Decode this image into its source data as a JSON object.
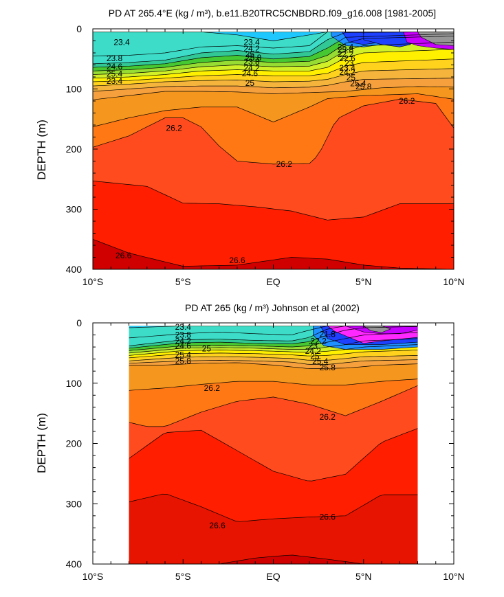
{
  "chart_data": [
    {
      "type": "heatmap",
      "title": "PD AT 265.4°E (kg / m³), b.e11.B20TRC5CNBDRD.f09_g16.008 [1981-2005]",
      "xlabel": "",
      "ylabel": "DEPTH (m)",
      "xlim": [
        -10,
        10
      ],
      "ylim": [
        400,
        0
      ],
      "xticks": [
        {
          "v": -10,
          "label": "10°S"
        },
        {
          "v": -5,
          "label": "5°S"
        },
        {
          "v": 0,
          "label": "EQ"
        },
        {
          "v": 5,
          "label": "5°N"
        },
        {
          "v": 10,
          "label": "10°N"
        }
      ],
      "yticks": [
        0,
        100,
        200,
        300,
        400
      ],
      "data_extent_x": [
        -10,
        10
      ],
      "data_extent_depth": [
        5,
        400
      ],
      "levels": [
        {
          "value": 22.2,
          "color": "#1e40ff"
        },
        {
          "value": 22.6,
          "color": "#1e90ff"
        },
        {
          "value": 23.0,
          "color": "#1ec8ff"
        },
        {
          "value": 23.4,
          "color": "#46e6ff"
        },
        {
          "value": 23.8,
          "color": "#3cdcc8"
        },
        {
          "value": 24.2,
          "color": "#32c896"
        },
        {
          "value": 24.4,
          "color": "#46c832"
        },
        {
          "value": 24.6,
          "color": "#96dc32"
        },
        {
          "value": 24.8,
          "color": "#d2f028"
        },
        {
          "value": 25.0,
          "color": "#fff000"
        },
        {
          "value": 25.2,
          "color": "#ffd21e"
        },
        {
          "value": 25.4,
          "color": "#f5b43c"
        },
        {
          "value": 25.6,
          "color": "#f5a03c"
        },
        {
          "value": 25.8,
          "color": "#f5961e"
        },
        {
          "value": 26.0,
          "color": "#ff7814"
        },
        {
          "value": 26.2,
          "color": "#ff4b1e"
        },
        {
          "value": 26.4,
          "color": "#ff1e00"
        },
        {
          "value": 26.6,
          "color": "#e61400"
        },
        {
          "value": 26.8,
          "color": "#d00000"
        }
      ],
      "contour_labels": [
        "23.4",
        "23.4",
        "23.8",
        "24.2",
        "24.6",
        "25",
        "25.4",
        "25.8",
        "23.4",
        "23.8",
        "24.2",
        "24.6",
        "25",
        "25.4",
        "25.8",
        "22.2",
        "22.6",
        "23",
        "23.4",
        "24.2",
        "25",
        "25.4",
        "25.8",
        "26.2",
        "26.2",
        "26.2",
        "26.6",
        "26.6"
      ],
      "isolines": [
        {
          "value": 25.8,
          "points": [
            [
              -10,
              118
            ],
            [
              -8,
              111
            ],
            [
              -6,
              104
            ],
            [
              -4,
              104
            ],
            [
              -2,
              105
            ],
            [
              0,
              108
            ],
            [
              2,
              106
            ],
            [
              4,
              104
            ],
            [
              6,
              98
            ],
            [
              8,
              96
            ],
            [
              10,
              97
            ]
          ]
        },
        {
          "value": 26.0,
          "points": [
            [
              -10,
              163
            ],
            [
              -8,
              148
            ],
            [
              -6,
              136
            ],
            [
              -4,
              130
            ],
            [
              -2,
              130
            ],
            [
              0,
              155
            ],
            [
              2,
              130
            ],
            [
              3,
              116
            ],
            [
              5,
              111
            ],
            [
              8,
              108
            ],
            [
              10,
              117
            ]
          ]
        },
        {
          "value": 26.2,
          "points": [
            [
              -10,
              197
            ],
            [
              -8,
              178
            ],
            [
              -6,
              148
            ],
            [
              -5,
              148
            ],
            [
              -4,
              163
            ],
            [
              -3,
              195
            ],
            [
              -2,
              220
            ],
            [
              0,
              225
            ],
            [
              2,
              224
            ],
            [
              2.5,
              210
            ],
            [
              3.5,
              150
            ],
            [
              5,
              128
            ],
            [
              7,
              117
            ],
            [
              9,
              124
            ],
            [
              10,
              165
            ]
          ]
        },
        {
          "value": 26.4,
          "points": [
            [
              -10,
              253
            ],
            [
              -7,
              262
            ],
            [
              -5,
              290
            ],
            [
              -3,
              291
            ],
            [
              -1,
              296
            ],
            [
              1,
              303
            ],
            [
              3,
              318
            ],
            [
              5,
              313
            ],
            [
              7,
              291
            ],
            [
              10,
              291
            ]
          ]
        },
        {
          "value": 26.6,
          "points": [
            [
              -10,
              350
            ],
            [
              -8,
              373
            ],
            [
              -5,
              395
            ],
            [
              -2,
              393
            ],
            [
              1,
              380
            ],
            [
              3,
              383
            ],
            [
              5,
              393
            ],
            [
              7,
              398
            ],
            [
              10,
              400
            ]
          ]
        }
      ]
    },
    {
      "type": "heatmap",
      "title": "PD AT 265 (kg / m³) Johnson et al (2002)",
      "xlabel": "",
      "ylabel": "DEPTH (m)",
      "xlim": [
        -10,
        10
      ],
      "ylim": [
        400,
        0
      ],
      "xticks": [
        {
          "v": -10,
          "label": "10°S"
        },
        {
          "v": -5,
          "label": "5°S"
        },
        {
          "v": 0,
          "label": "EQ"
        },
        {
          "v": 5,
          "label": "5°N"
        },
        {
          "v": 10,
          "label": "10°N"
        }
      ],
      "yticks": [
        0,
        100,
        200,
        300,
        400
      ],
      "data_extent_x": [
        -8,
        8
      ],
      "data_extent_depth": [
        5,
        400
      ],
      "levels": [
        {
          "value": 21.8,
          "color": "#ff28ff"
        },
        {
          "value": 22.2,
          "color": "#1e40ff"
        },
        {
          "value": 22.6,
          "color": "#1e90ff"
        },
        {
          "value": 23.0,
          "color": "#1ec8ff"
        },
        {
          "value": 23.4,
          "color": "#46e6ff"
        },
        {
          "value": 23.8,
          "color": "#3cdcc8"
        },
        {
          "value": 24.2,
          "color": "#32c896"
        },
        {
          "value": 24.4,
          "color": "#46c832"
        },
        {
          "value": 24.6,
          "color": "#96dc32"
        },
        {
          "value": 24.8,
          "color": "#d2f028"
        },
        {
          "value": 25.0,
          "color": "#fff000"
        },
        {
          "value": 25.2,
          "color": "#ffd21e"
        },
        {
          "value": 25.4,
          "color": "#f5b43c"
        },
        {
          "value": 25.6,
          "color": "#f5a03c"
        },
        {
          "value": 25.8,
          "color": "#f5961e"
        },
        {
          "value": 26.0,
          "color": "#ff7814"
        },
        {
          "value": 26.2,
          "color": "#ff4b1e"
        },
        {
          "value": 26.4,
          "color": "#ff1e00"
        },
        {
          "value": 26.6,
          "color": "#e61400"
        },
        {
          "value": 26.8,
          "color": "#d00000"
        }
      ],
      "contour_labels": [
        "23.4",
        "23.8",
        "24.2",
        "24.6",
        "25",
        "25.4",
        "25.8",
        "21.8",
        "22.2",
        "23",
        "24.2",
        "25",
        "25.4",
        "25.8",
        "26.2",
        "26.2",
        "26.6",
        "26.6"
      ],
      "isolines": [
        {
          "value": 25.8,
          "points": [
            [
              -8,
              70
            ],
            [
              -6,
              70
            ],
            [
              -4,
              67
            ],
            [
              -2,
              66
            ],
            [
              0,
              70
            ],
            [
              2,
              76
            ],
            [
              4,
              75
            ],
            [
              6,
              70
            ],
            [
              8,
              68
            ]
          ]
        },
        {
          "value": 26.0,
          "points": [
            [
              -8,
              112
            ],
            [
              -6,
              108
            ],
            [
              -4,
              102
            ],
            [
              -2,
              97
            ],
            [
              0,
              97
            ],
            [
              2,
              103
            ],
            [
              4,
              103
            ],
            [
              6,
              97
            ],
            [
              8,
              93
            ]
          ]
        },
        {
          "value": 26.2,
          "points": [
            [
              -8,
              165
            ],
            [
              -7,
              172
            ],
            [
              -6,
              172
            ],
            [
              -4,
              148
            ],
            [
              -2,
              130
            ],
            [
              0,
              123
            ],
            [
              2,
              135
            ],
            [
              4,
              154
            ],
            [
              6,
              130
            ],
            [
              8,
              104
            ]
          ]
        },
        {
          "value": 26.4,
          "points": [
            [
              -8,
              225
            ],
            [
              -6,
              182
            ],
            [
              -4,
              178
            ],
            [
              -2,
              212
            ],
            [
              0,
              246
            ],
            [
              2,
              263
            ],
            [
              4,
              251
            ],
            [
              6,
              198
            ],
            [
              8,
              175
            ]
          ]
        },
        {
          "value": 26.6,
          "points": [
            [
              -8,
              297
            ],
            [
              -6,
              283
            ],
            [
              -4,
              305
            ],
            [
              -2,
              330
            ],
            [
              0,
              325
            ],
            [
              2,
              322
            ],
            [
              4,
              320
            ],
            [
              6,
              285
            ],
            [
              8,
              285
            ]
          ]
        },
        {
          "value": 26.8,
          "points": [
            [
              -3,
              400
            ],
            [
              -1,
              390
            ],
            [
              1,
              385
            ],
            [
              3,
              392
            ],
            [
              5,
              400
            ]
          ]
        }
      ]
    }
  ]
}
